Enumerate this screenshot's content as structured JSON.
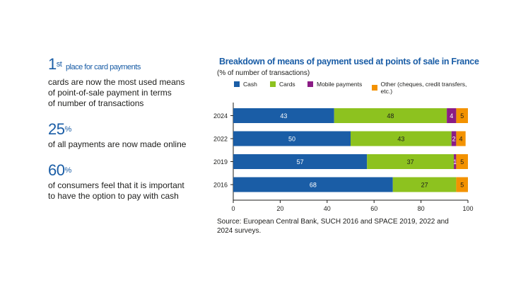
{
  "stats": [
    {
      "big": "1",
      "sup": "st",
      "inline": "place for card payments",
      "desc": "cards are now the most used means\nof point-of-sale payment in terms\nof number of transactions"
    },
    {
      "big": "25",
      "sup": "%",
      "inline": "",
      "desc": "of all payments are now made online"
    },
    {
      "big": "60",
      "sup": "%",
      "inline": "",
      "desc": "of consumers feel that it is important\nto have the option to pay with cash"
    }
  ],
  "source": "Source: European Central Bank, SUCH 2016 and SPACE 2019, 2022 and 2024 surveys.",
  "chart_data": {
    "type": "bar",
    "orientation": "horizontal",
    "stacked": true,
    "title": "Breakdown of means of payment used at points of sale in France",
    "subtitle": "(% of number of transactions)",
    "categories": [
      "2024",
      "2022",
      "2019",
      "2016"
    ],
    "series": [
      {
        "name": "Cash",
        "color": "#1a5da6",
        "values": [
          43,
          50,
          57,
          68
        ]
      },
      {
        "name": "Cards",
        "color": "#8dc21f",
        "values": [
          48,
          43,
          37,
          27
        ]
      },
      {
        "name": "Mobile payments",
        "color": "#8b1c85",
        "values": [
          4,
          2,
          1,
          0
        ]
      },
      {
        "name": "Other (cheques, credit transfers, etc.)",
        "color": "#f39200",
        "values": [
          5,
          4,
          5,
          5
        ]
      }
    ],
    "xlim": [
      0,
      100
    ],
    "xticks": [
      0,
      20,
      40,
      60,
      80,
      100
    ],
    "legend_position": "top",
    "grid": false
  }
}
